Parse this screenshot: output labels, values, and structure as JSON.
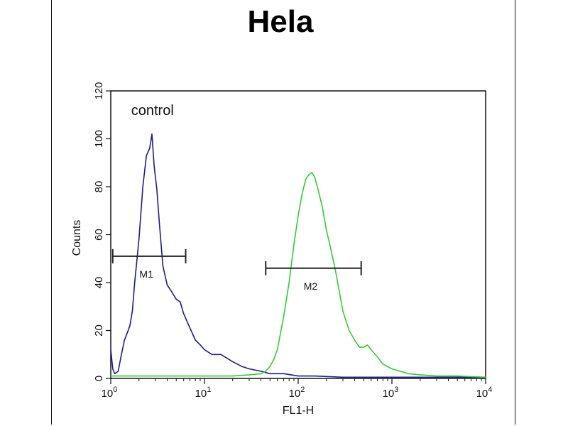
{
  "chart_data": {
    "type": "line",
    "title": "Hela",
    "xlabel": "FL1-H",
    "ylabel": "Counts",
    "x_scale": "log",
    "xlim": [
      1,
      10000
    ],
    "ylim": [
      0,
      120
    ],
    "yticks": [
      "0",
      "20",
      "40",
      "60",
      "80",
      "100",
      "120"
    ],
    "xticks": [
      {
        "base": "10",
        "exp": "0"
      },
      {
        "base": "10",
        "exp": "1"
      },
      {
        "base": "10",
        "exp": "2"
      },
      {
        "base": "10",
        "exp": "3"
      },
      {
        "base": "10",
        "exp": "4"
      }
    ],
    "grid": false,
    "series": [
      {
        "name": "control",
        "color": "#1c1c8c",
        "x": [
          1.0,
          1.05,
          1.1,
          1.2,
          1.3,
          1.4,
          1.5,
          1.6,
          1.7,
          1.8,
          2.0,
          2.2,
          2.4,
          2.6,
          2.75,
          2.9,
          3.1,
          3.3,
          3.6,
          4.0,
          4.5,
          5.0,
          5.5,
          6.0,
          7.0,
          8.0,
          9.0,
          10,
          12,
          15,
          20,
          25,
          30,
          40,
          50,
          70,
          100,
          150,
          300,
          1000,
          10000
        ],
        "y": [
          12,
          4,
          2,
          3,
          10,
          16,
          19,
          22,
          28,
          40,
          58,
          80,
          93,
          96,
          102,
          89,
          79,
          65,
          47,
          39,
          36,
          33,
          32,
          27,
          21,
          16,
          14,
          12,
          10,
          10,
          7,
          5,
          4,
          3,
          2,
          2,
          1,
          1,
          0.5,
          0.5,
          0.5
        ]
      },
      {
        "name": "",
        "color": "#33cc33",
        "x": [
          1,
          3,
          10,
          20,
          30,
          40,
          45,
          50,
          55,
          60,
          70,
          80,
          90,
          100,
          110,
          120,
          130,
          140,
          150,
          160,
          180,
          200,
          220,
          250,
          300,
          350,
          400,
          450,
          500,
          550,
          600,
          700,
          800,
          1000,
          1500,
          2000,
          3000,
          5000,
          10000
        ],
        "y": [
          1,
          1,
          1,
          1,
          1.5,
          2,
          3,
          5,
          8,
          12,
          26,
          40,
          56,
          68,
          77,
          83,
          85,
          86,
          84,
          80,
          72,
          62,
          55,
          45,
          28,
          20,
          16,
          13,
          13,
          14,
          12,
          9,
          6,
          4,
          2,
          1.5,
          1,
          1,
          0.5
        ]
      }
    ],
    "annotations": [
      {
        "text": "control",
        "x": 2.6,
        "y": 110
      },
      {
        "text": "M1",
        "x1": 1.05,
        "x2": 6.3,
        "y": 51
      },
      {
        "text": "M2",
        "x1": 45,
        "x2": 470,
        "y": 46
      }
    ]
  }
}
